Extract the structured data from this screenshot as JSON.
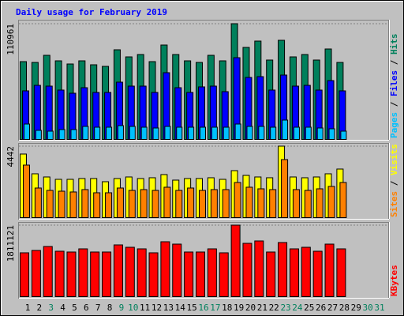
{
  "chart_data": {
    "type": "bar",
    "title": "Daily usage for February 2019",
    "categories": [
      1,
      2,
      3,
      4,
      5,
      6,
      7,
      8,
      9,
      10,
      11,
      12,
      13,
      14,
      15,
      16,
      17,
      18,
      19,
      20,
      21,
      22,
      23,
      24,
      25,
      26,
      27,
      28,
      29,
      30,
      31
    ],
    "category_colors": [
      "#000000",
      "#000000",
      "#00805c",
      "#000000",
      "#000000",
      "#000000",
      "#000000",
      "#000000",
      "#00805c",
      "#00805c",
      "#000000",
      "#000000",
      "#000000",
      "#000000",
      "#000000",
      "#00805c",
      "#00805c",
      "#000000",
      "#000000",
      "#000000",
      "#000000",
      "#000000",
      "#00805c",
      "#00805c",
      "#000000",
      "#000000",
      "#000000",
      "#000000",
      "#000000",
      "#00805c",
      "#00805c"
    ],
    "panels": [
      {
        "ylim": [
          0,
          110961
        ],
        "yticks": [
          110961
        ],
        "series": [
          {
            "name": "Hits",
            "color": "#00805c",
            "values": [
              74480,
              73720,
              80560,
              75240,
              72200,
              75240,
              71440,
              69920,
              85880,
              79040,
              81320,
              74480,
              90440,
              81320,
              75240,
              73720,
              80560,
              75240,
              110961,
              88160,
              94240,
              76000,
              95000,
              79040,
              81320,
              76000,
              86640,
              73720,
              null,
              null,
              null
            ]
          },
          {
            "name": "Files",
            "color": "#0000ff",
            "values": [
              46360,
              51680,
              50920,
              47120,
              44080,
              49400,
              44840,
              44840,
              54720,
              50920,
              50920,
              44840,
              63840,
              49400,
              44840,
              50160,
              50920,
              45600,
              78280,
              59280,
              60040,
              47120,
              61560,
              50920,
              51680,
              47120,
              56240,
              46360,
              null,
              null,
              null
            ]
          },
          {
            "name": "Pages",
            "color": "#00c0ff",
            "values": [
              14440,
              8360,
              7600,
              9120,
              9120,
              12160,
              11400,
              11400,
              12920,
              12160,
              11400,
              10640,
              12160,
              11400,
              11400,
              11400,
              11400,
              11400,
              14440,
              12160,
              12160,
              11400,
              18240,
              11400,
              11400,
              10640,
              9880,
              7600,
              null,
              null,
              null
            ]
          }
        ]
      },
      {
        "ylim": [
          0,
          4442
        ],
        "yticks": [
          4442
        ],
        "series": [
          {
            "name": "Visits",
            "color": "#ffff00",
            "values": [
              3949,
              2715,
              2517,
              2369,
              2369,
              2419,
              2419,
              2221,
              2419,
              2517,
              2419,
              2468,
              2665,
              2320,
              2419,
              2419,
              2468,
              2369,
              2912,
              2616,
              2517,
              2468,
              4442,
              2517,
              2468,
              2517,
              2715,
              3011,
              null,
              null,
              null
            ]
          },
          {
            "name": "Sites",
            "color": "#ff8000",
            "values": [
              3258,
              1826,
              1678,
              1629,
              1580,
              1728,
              1530,
              1530,
              1826,
              1678,
              1728,
              1678,
              1876,
              1678,
              1826,
              1678,
              1728,
              1728,
              2172,
              1876,
              1777,
              1728,
              3603,
              1728,
              1678,
              1777,
              1925,
              2172,
              null,
              null,
              null
            ]
          }
        ]
      },
      {
        "ylim": [
          0,
          1811121
        ],
        "yticks": [
          1811121
        ],
        "series": [
          {
            "name": "KBytes",
            "color": "#ff0000",
            "values": [
              1106820,
              1167192,
              1267812,
              1147068,
              1126944,
              1207440,
              1126944,
              1126944,
              1308060,
              1247688,
              1207440,
              1106820,
              1388556,
              1328184,
              1126944,
              1126944,
              1207440,
              1106820,
              1811121,
              1348308,
              1408680,
              1126944,
              1368432,
              1207440,
              1247688,
              1147068,
              1328184,
              1207440,
              null,
              null,
              null
            ]
          }
        ]
      }
    ]
  }
}
